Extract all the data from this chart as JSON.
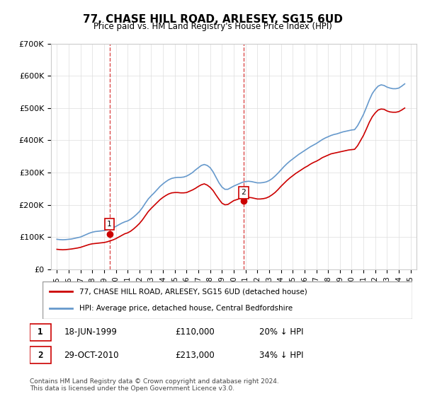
{
  "title": "77, CHASE HILL ROAD, ARLESEY, SG15 6UD",
  "subtitle": "Price paid vs. HM Land Registry's House Price Index (HPI)",
  "legend_line1": "77, CHASE HILL ROAD, ARLESEY, SG15 6UD (detached house)",
  "legend_line2": "HPI: Average price, detached house, Central Bedfordshire",
  "footnote": "Contains HM Land Registry data © Crown copyright and database right 2024.\nThis data is licensed under the Open Government Licence v3.0.",
  "sale1": {
    "label": "1",
    "date": "18-JUN-1999",
    "price": 110000,
    "pct": "20%",
    "year": 1999.46
  },
  "sale2": {
    "label": "2",
    "date": "29-OCT-2010",
    "price": 213000,
    "pct": "34%",
    "year": 2010.83
  },
  "ylim": [
    0,
    700000
  ],
  "yticks": [
    0,
    100000,
    200000,
    300000,
    400000,
    500000,
    600000,
    700000
  ],
  "ytick_labels": [
    "£0",
    "£100K",
    "£200K",
    "£300K",
    "£400K",
    "£500K",
    "£600K",
    "£700K"
  ],
  "xlim_start": 1994.5,
  "xlim_end": 2025.5,
  "red_color": "#cc0000",
  "blue_color": "#6699cc",
  "dashed_color": "#cc0000",
  "hpi_data": {
    "years": [
      1995.0,
      1995.25,
      1995.5,
      1995.75,
      1996.0,
      1996.25,
      1996.5,
      1996.75,
      1997.0,
      1997.25,
      1997.5,
      1997.75,
      1998.0,
      1998.25,
      1998.5,
      1998.75,
      1999.0,
      1999.25,
      1999.5,
      1999.75,
      2000.0,
      2000.25,
      2000.5,
      2000.75,
      2001.0,
      2001.25,
      2001.5,
      2001.75,
      2002.0,
      2002.25,
      2002.5,
      2002.75,
      2003.0,
      2003.25,
      2003.5,
      2003.75,
      2004.0,
      2004.25,
      2004.5,
      2004.75,
      2005.0,
      2005.25,
      2005.5,
      2005.75,
      2006.0,
      2006.25,
      2006.5,
      2006.75,
      2007.0,
      2007.25,
      2007.5,
      2007.75,
      2008.0,
      2008.25,
      2008.5,
      2008.75,
      2009.0,
      2009.25,
      2009.5,
      2009.75,
      2010.0,
      2010.25,
      2010.5,
      2010.75,
      2011.0,
      2011.25,
      2011.5,
      2011.75,
      2012.0,
      2012.25,
      2012.5,
      2012.75,
      2013.0,
      2013.25,
      2013.5,
      2013.75,
      2014.0,
      2014.25,
      2014.5,
      2014.75,
      2015.0,
      2015.25,
      2015.5,
      2015.75,
      2016.0,
      2016.25,
      2016.5,
      2016.75,
      2017.0,
      2017.25,
      2017.5,
      2017.75,
      2018.0,
      2018.25,
      2018.5,
      2018.75,
      2019.0,
      2019.25,
      2019.5,
      2019.75,
      2020.0,
      2020.25,
      2020.5,
      2020.75,
      2021.0,
      2021.25,
      2021.5,
      2021.75,
      2022.0,
      2022.25,
      2022.5,
      2022.75,
      2023.0,
      2023.25,
      2023.5,
      2023.75,
      2024.0,
      2024.25,
      2024.5
    ],
    "values": [
      93000,
      92000,
      91500,
      92000,
      93000,
      94000,
      96000,
      98000,
      100000,
      104000,
      108000,
      112000,
      115000,
      117000,
      118000,
      119000,
      120000,
      122000,
      125000,
      128000,
      133000,
      138000,
      143000,
      147000,
      150000,
      155000,
      162000,
      170000,
      179000,
      191000,
      205000,
      218000,
      228000,
      237000,
      247000,
      257000,
      265000,
      272000,
      278000,
      282000,
      284000,
      285000,
      285000,
      286000,
      289000,
      294000,
      300000,
      308000,
      315000,
      322000,
      325000,
      322000,
      315000,
      302000,
      285000,
      268000,
      255000,
      248000,
      248000,
      253000,
      258000,
      262000,
      266000,
      270000,
      272000,
      273000,
      272000,
      270000,
      268000,
      268000,
      269000,
      271000,
      275000,
      281000,
      289000,
      298000,
      308000,
      318000,
      327000,
      335000,
      342000,
      349000,
      356000,
      362000,
      368000,
      374000,
      380000,
      385000,
      390000,
      396000,
      402000,
      407000,
      411000,
      415000,
      418000,
      420000,
      423000,
      426000,
      428000,
      430000,
      432000,
      433000,
      445000,
      462000,
      480000,
      502000,
      525000,
      545000,
      558000,
      568000,
      572000,
      570000,
      565000,
      562000,
      560000,
      560000,
      562000,
      568000,
      575000
    ]
  },
  "price_data": {
    "years": [
      1995.0,
      1995.25,
      1995.5,
      1995.75,
      1996.0,
      1996.25,
      1996.5,
      1996.75,
      1997.0,
      1997.25,
      1997.5,
      1997.75,
      1998.0,
      1998.25,
      1998.5,
      1998.75,
      1999.0,
      1999.25,
      1999.5,
      1999.75,
      2000.0,
      2000.25,
      2000.5,
      2000.75,
      2001.0,
      2001.25,
      2001.5,
      2001.75,
      2002.0,
      2002.25,
      2002.5,
      2002.75,
      2003.0,
      2003.25,
      2003.5,
      2003.75,
      2004.0,
      2004.25,
      2004.5,
      2004.75,
      2005.0,
      2005.25,
      2005.5,
      2005.75,
      2006.0,
      2006.25,
      2006.5,
      2006.75,
      2007.0,
      2007.25,
      2007.5,
      2007.75,
      2008.0,
      2008.25,
      2008.5,
      2008.75,
      2009.0,
      2009.25,
      2009.5,
      2009.75,
      2010.0,
      2010.25,
      2010.5,
      2010.75,
      2011.0,
      2011.25,
      2011.5,
      2011.75,
      2012.0,
      2012.25,
      2012.5,
      2012.75,
      2013.0,
      2013.25,
      2013.5,
      2013.75,
      2014.0,
      2014.25,
      2014.5,
      2014.75,
      2015.0,
      2015.25,
      2015.5,
      2015.75,
      2016.0,
      2016.25,
      2016.5,
      2016.75,
      2017.0,
      2017.25,
      2017.5,
      2017.75,
      2018.0,
      2018.25,
      2018.5,
      2018.75,
      2019.0,
      2019.25,
      2019.5,
      2019.75,
      2020.0,
      2020.25,
      2020.5,
      2020.75,
      2021.0,
      2021.25,
      2021.5,
      2021.75,
      2022.0,
      2022.25,
      2022.5,
      2022.75,
      2023.0,
      2023.25,
      2023.5,
      2023.75,
      2024.0,
      2024.25,
      2024.5
    ],
    "values": [
      62000,
      61000,
      60500,
      61000,
      62000,
      63000,
      64500,
      66000,
      68000,
      71000,
      74000,
      77000,
      79000,
      80000,
      81000,
      82000,
      83000,
      85000,
      88000,
      91000,
      95000,
      100000,
      105000,
      110000,
      113000,
      118000,
      125000,
      133000,
      142000,
      153000,
      166000,
      179000,
      189000,
      198000,
      207000,
      216000,
      223000,
      229000,
      234000,
      237000,
      238000,
      238000,
      237000,
      237000,
      238000,
      242000,
      246000,
      251000,
      257000,
      262000,
      265000,
      261000,
      254000,
      244000,
      230000,
      217000,
      205000,
      200000,
      201000,
      207000,
      213000,
      216000,
      219000,
      221000,
      223000,
      223000,
      222000,
      220000,
      218000,
      218000,
      219000,
      221000,
      225000,
      231000,
      238000,
      247000,
      257000,
      266000,
      275000,
      283000,
      290000,
      297000,
      303000,
      309000,
      315000,
      320000,
      326000,
      331000,
      335000,
      340000,
      346000,
      350000,
      354000,
      358000,
      360000,
      362000,
      364000,
      366000,
      368000,
      370000,
      371000,
      372000,
      383000,
      399000,
      415000,
      435000,
      456000,
      473000,
      485000,
      494000,
      497000,
      496000,
      491000,
      488000,
      487000,
      487000,
      489000,
      494000,
      500000
    ]
  }
}
